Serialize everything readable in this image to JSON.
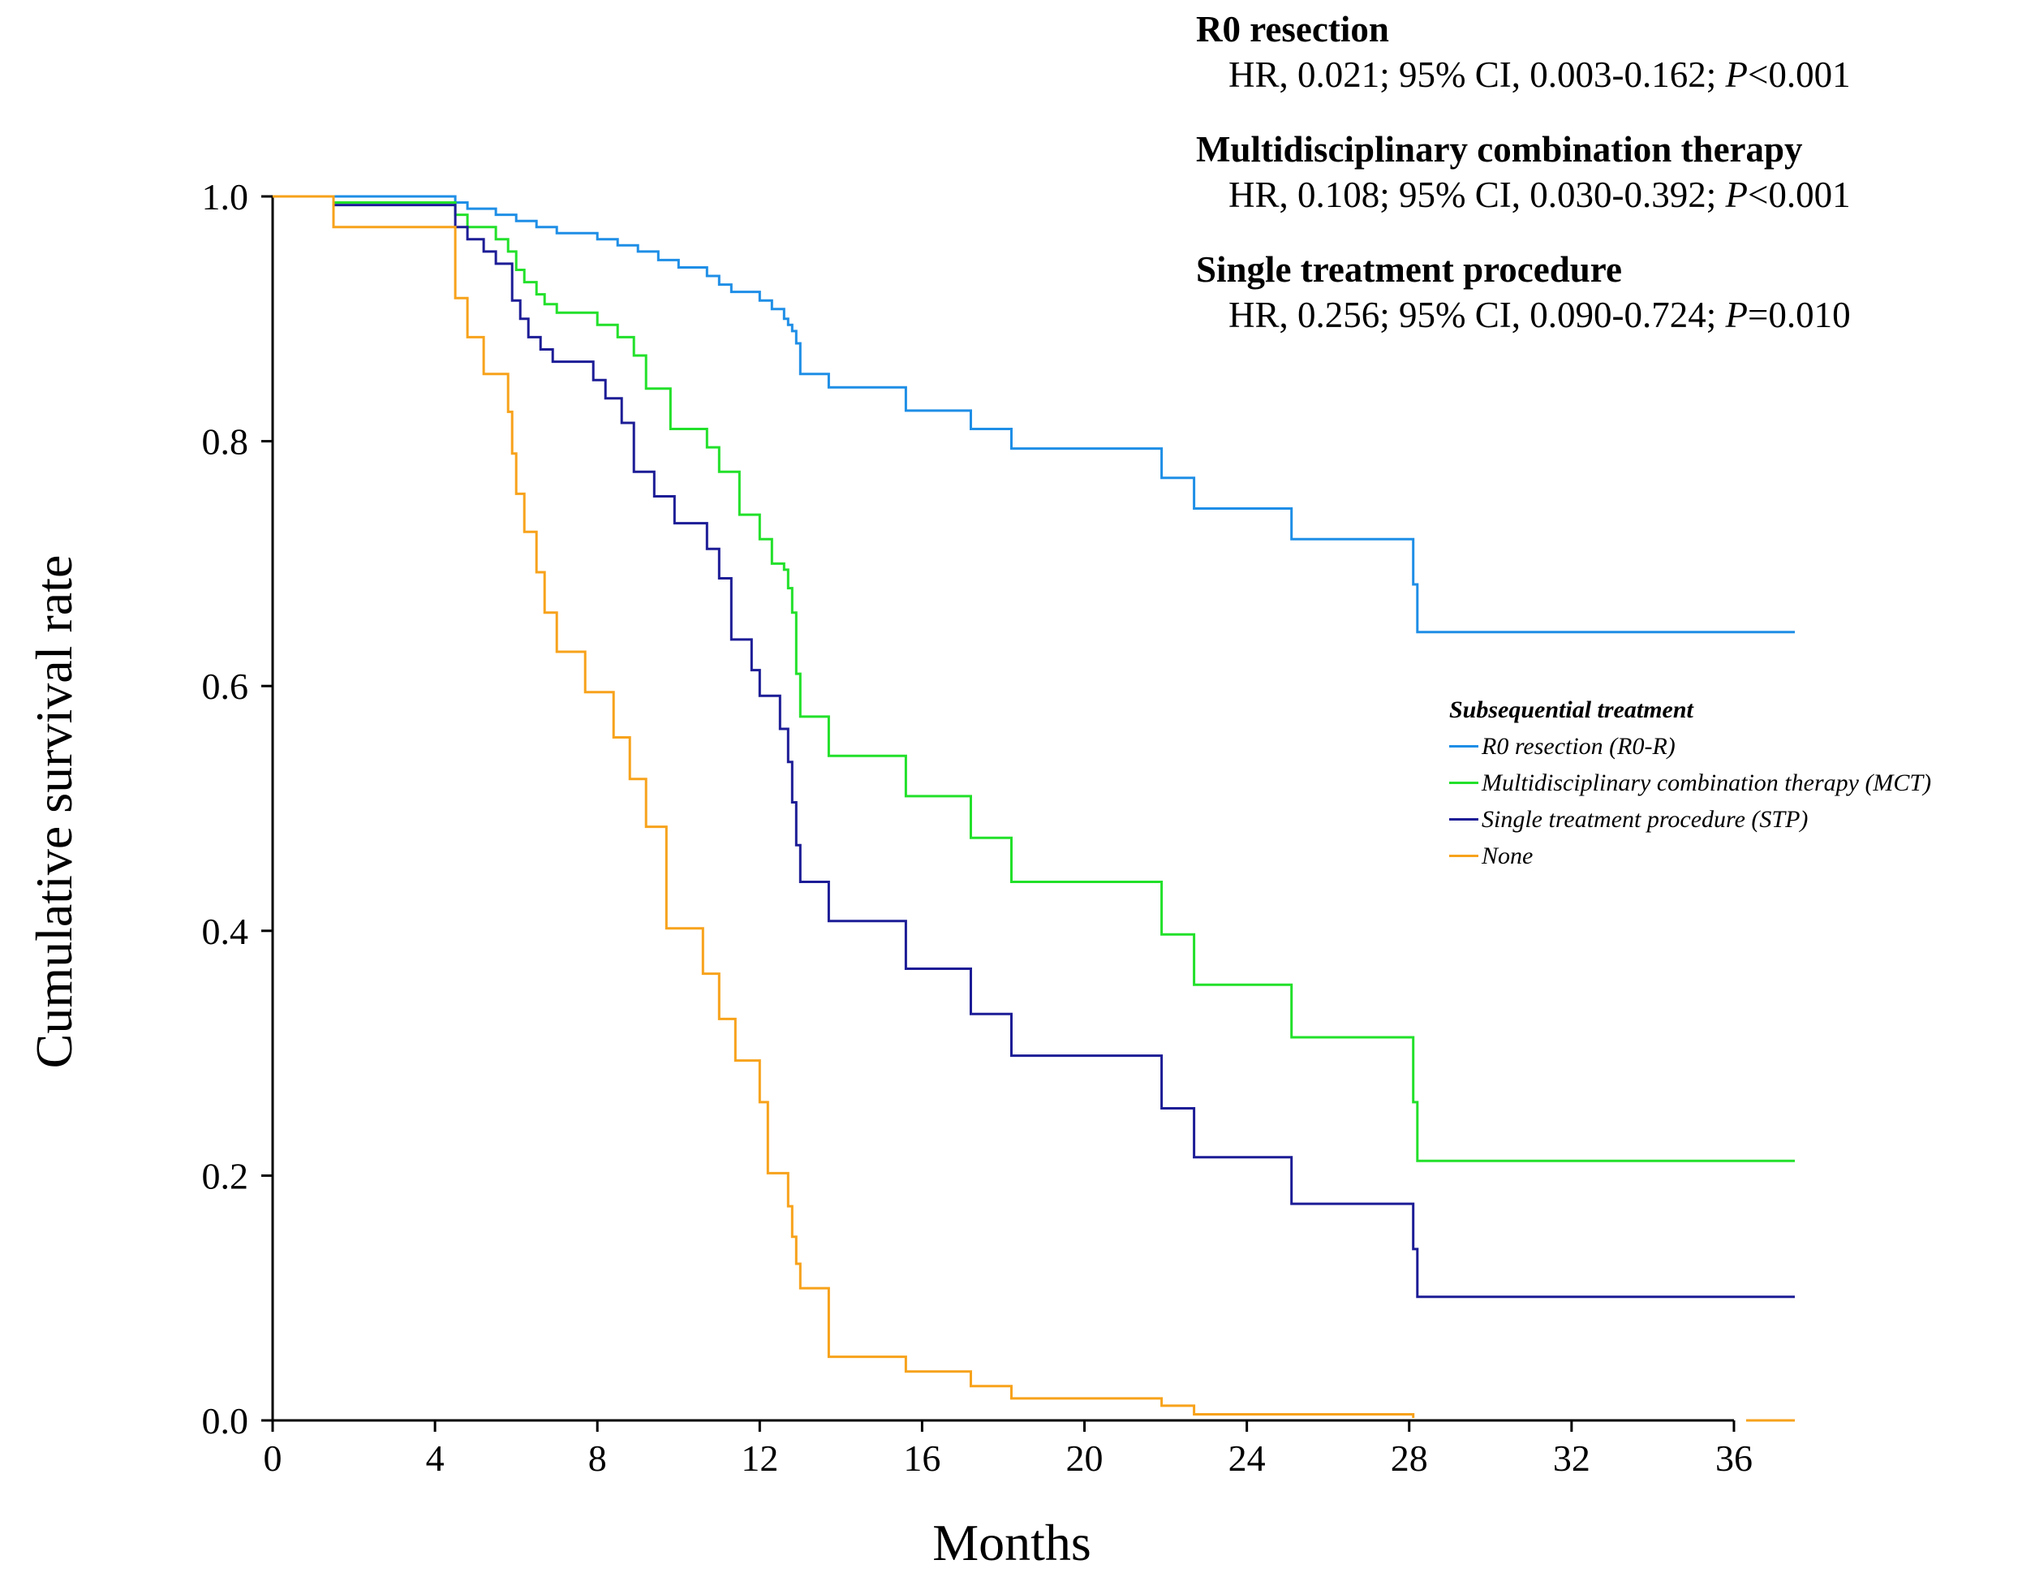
{
  "chart_data": {
    "type": "line",
    "subtype": "kaplan-meier",
    "xlabel": "Months",
    "ylabel": "Cumulative survival rate",
    "xlim": [
      0,
      37.5
    ],
    "ylim": [
      0,
      1.0
    ],
    "x_ticks": [
      "0",
      "4",
      "8",
      "12",
      "16",
      "20",
      "24",
      "28",
      "32",
      "36"
    ],
    "y_ticks": [
      "0.0",
      "0.2",
      "0.4",
      "0.6",
      "0.8",
      "1.0"
    ],
    "legend": {
      "title": "Subsequential treatment",
      "entries": [
        "R0 resection (R0-R)",
        "Multidisciplinary combination therapy (MCT)",
        "Single treatment procedure (STP)",
        "None"
      ]
    },
    "hazard_ratios": [
      {
        "name": "R0 resection",
        "hr": "HR, 0.021; 95% CI, 0.003-0.162;",
        "p_label": "P",
        "p_value": "<0.001"
      },
      {
        "name": "Multidisciplinary combination therapy",
        "hr": "HR, 0.108; 95% CI, 0.030-0.392;",
        "p_label": "P",
        "p_value": "<0.001"
      },
      {
        "name": "Single treatment procedure",
        "hr": "HR, 0.256; 95% CI, 0.090-0.724;",
        "p_label": "P",
        "p_value": "=0.010"
      }
    ],
    "series": [
      {
        "name": "R0 resection (R0-R)",
        "color": "#1e8ee6",
        "x": [
          0,
          1.5,
          4.2,
          4.5,
          4.8,
          5.5,
          6.0,
          6.5,
          7.0,
          8.0,
          8.5,
          9.0,
          9.5,
          10.0,
          10.7,
          11.0,
          11.3,
          12.0,
          12.3,
          12.6,
          12.7,
          12.8,
          12.9,
          13.0,
          13.7,
          15.6,
          17.2,
          18.2,
          21.9,
          22.7,
          25.1,
          28.1,
          28.2,
          37.5
        ],
        "y": [
          1.0,
          1.0,
          1.0,
          0.995,
          0.99,
          0.985,
          0.98,
          0.975,
          0.97,
          0.965,
          0.96,
          0.955,
          0.948,
          0.942,
          0.935,
          0.928,
          0.922,
          0.915,
          0.908,
          0.9,
          0.895,
          0.89,
          0.88,
          0.855,
          0.844,
          0.825,
          0.81,
          0.794,
          0.77,
          0.745,
          0.72,
          0.683,
          0.644,
          0.644
        ]
      },
      {
        "name": "Multidisciplinary combination therapy (MCT)",
        "color": "#22e02a",
        "x": [
          0,
          1.5,
          4.2,
          4.5,
          4.8,
          5.5,
          5.8,
          6.0,
          6.2,
          6.5,
          6.7,
          7.0,
          8.0,
          8.5,
          8.9,
          9.2,
          9.8,
          10.7,
          11.0,
          11.5,
          12.0,
          12.3,
          12.6,
          12.7,
          12.8,
          12.9,
          13.0,
          13.7,
          15.6,
          17.2,
          18.2,
          21.9,
          22.7,
          25.1,
          28.1,
          28.2,
          37.5
        ],
        "y": [
          1.0,
          0.995,
          0.995,
          0.985,
          0.975,
          0.965,
          0.955,
          0.94,
          0.93,
          0.92,
          0.912,
          0.905,
          0.895,
          0.885,
          0.87,
          0.843,
          0.81,
          0.795,
          0.775,
          0.74,
          0.72,
          0.7,
          0.695,
          0.68,
          0.66,
          0.61,
          0.575,
          0.543,
          0.51,
          0.476,
          0.44,
          0.397,
          0.356,
          0.313,
          0.26,
          0.212,
          0.212
        ]
      },
      {
        "name": "Single treatment procedure (STP)",
        "color": "#1c1c96",
        "x": [
          0,
          1.5,
          4.2,
          4.5,
          4.8,
          5.2,
          5.5,
          5.9,
          6.1,
          6.3,
          6.6,
          6.9,
          7.2,
          7.9,
          8.2,
          8.6,
          8.9,
          9.4,
          9.9,
          10.7,
          11.0,
          11.3,
          11.8,
          12.0,
          12.5,
          12.7,
          12.8,
          12.9,
          13.0,
          13.7,
          15.6,
          17.2,
          18.2,
          21.9,
          22.7,
          25.1,
          28.1,
          28.2,
          37.5
        ],
        "y": [
          1.0,
          0.993,
          0.993,
          0.975,
          0.965,
          0.955,
          0.945,
          0.915,
          0.9,
          0.885,
          0.875,
          0.865,
          0.865,
          0.85,
          0.835,
          0.815,
          0.775,
          0.755,
          0.733,
          0.712,
          0.688,
          0.638,
          0.613,
          0.592,
          0.565,
          0.538,
          0.505,
          0.47,
          0.44,
          0.408,
          0.369,
          0.332,
          0.298,
          0.255,
          0.215,
          0.177,
          0.14,
          0.101,
          0.101
        ]
      },
      {
        "name": "None",
        "color": "#f7a21b",
        "x": [
          0,
          1.5,
          4.2,
          4.5,
          4.8,
          5.2,
          5.8,
          5.9,
          6.0,
          6.2,
          6.5,
          6.7,
          7.0,
          7.7,
          8.4,
          8.8,
          9.2,
          9.7,
          10.6,
          11.0,
          11.4,
          12.0,
          12.2,
          12.7,
          12.8,
          12.9,
          13.0,
          13.7,
          15.6,
          17.2,
          18.2,
          21.9,
          22.7,
          28.1
        ],
        "y": [
          1.0,
          0.975,
          0.975,
          0.917,
          0.885,
          0.855,
          0.824,
          0.79,
          0.757,
          0.726,
          0.693,
          0.66,
          0.628,
          0.595,
          0.558,
          0.524,
          0.485,
          0.402,
          0.365,
          0.328,
          0.294,
          0.26,
          0.202,
          0.175,
          0.15,
          0.128,
          0.108,
          0.052,
          0.04,
          0.028,
          0.018,
          0.012,
          0.005,
          0.002
        ]
      }
    ]
  }
}
